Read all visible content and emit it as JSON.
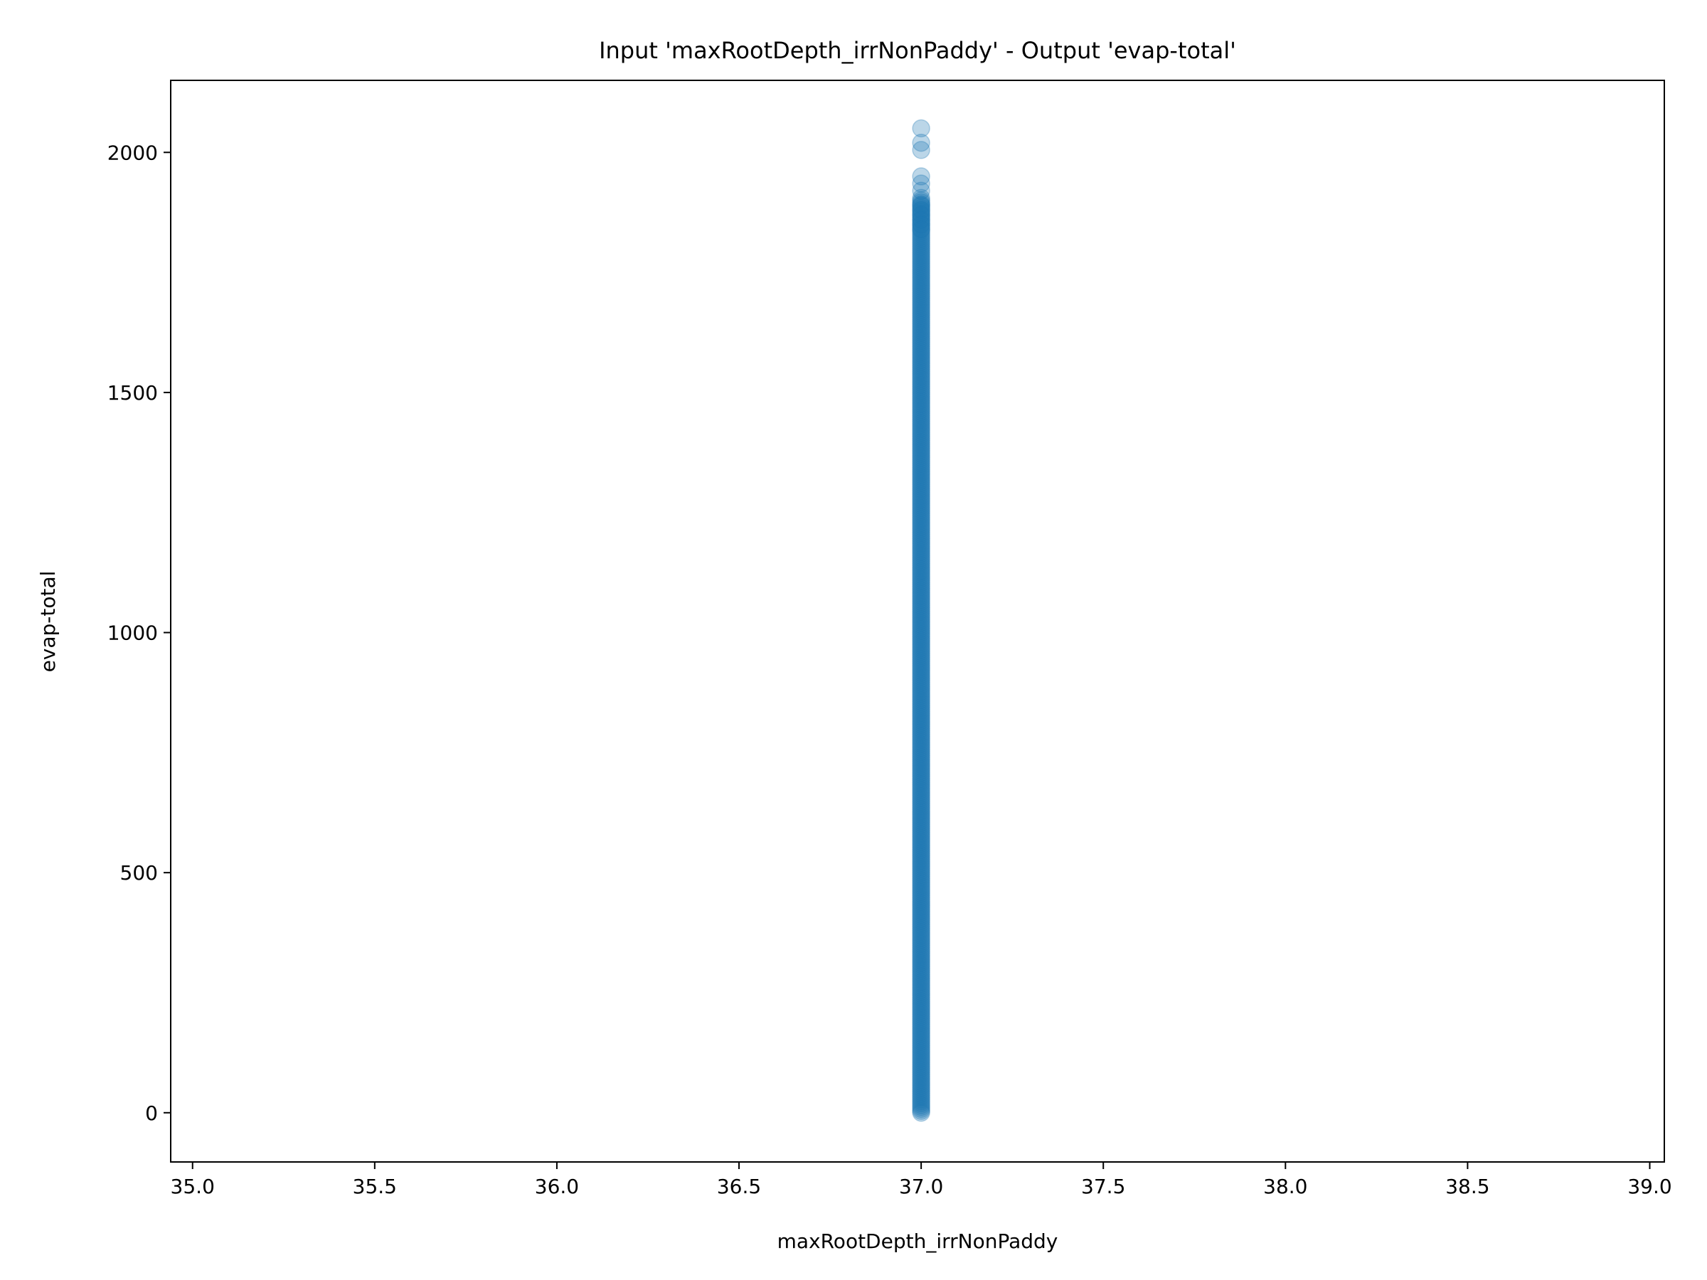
{
  "chart_data": {
    "type": "scatter",
    "title": "Input 'maxRootDepth_irrNonPaddy' - Output 'evap-total'",
    "xlabel": "maxRootDepth_irrNonPaddy",
    "ylabel": "evap-total",
    "xlim": [
      34.94,
      39.04
    ],
    "ylim": [
      -102.5,
      2150
    ],
    "xticks": [
      35.0,
      35.5,
      36.0,
      36.5,
      37.0,
      37.5,
      38.0,
      38.5,
      39.0
    ],
    "xtick_labels": [
      "35.0",
      "35.5",
      "36.0",
      "36.5",
      "37.0",
      "37.5",
      "38.0",
      "38.5",
      "39.0"
    ],
    "yticks": [
      0,
      500,
      1000,
      1500,
      2000
    ],
    "ytick_labels": [
      "0",
      "500",
      "1000",
      "1500",
      "2000"
    ],
    "grid": false,
    "marker_color": "#1f77b4",
    "marker_alpha": 0.3,
    "series": [
      {
        "x_constant": 37.0,
        "dense_range": [
          0,
          1900
        ],
        "y": [
          2050,
          2020,
          2005,
          1950,
          1935,
          1920,
          1905,
          1890,
          1880,
          1870,
          1860,
          1850,
          1840
        ]
      }
    ]
  }
}
